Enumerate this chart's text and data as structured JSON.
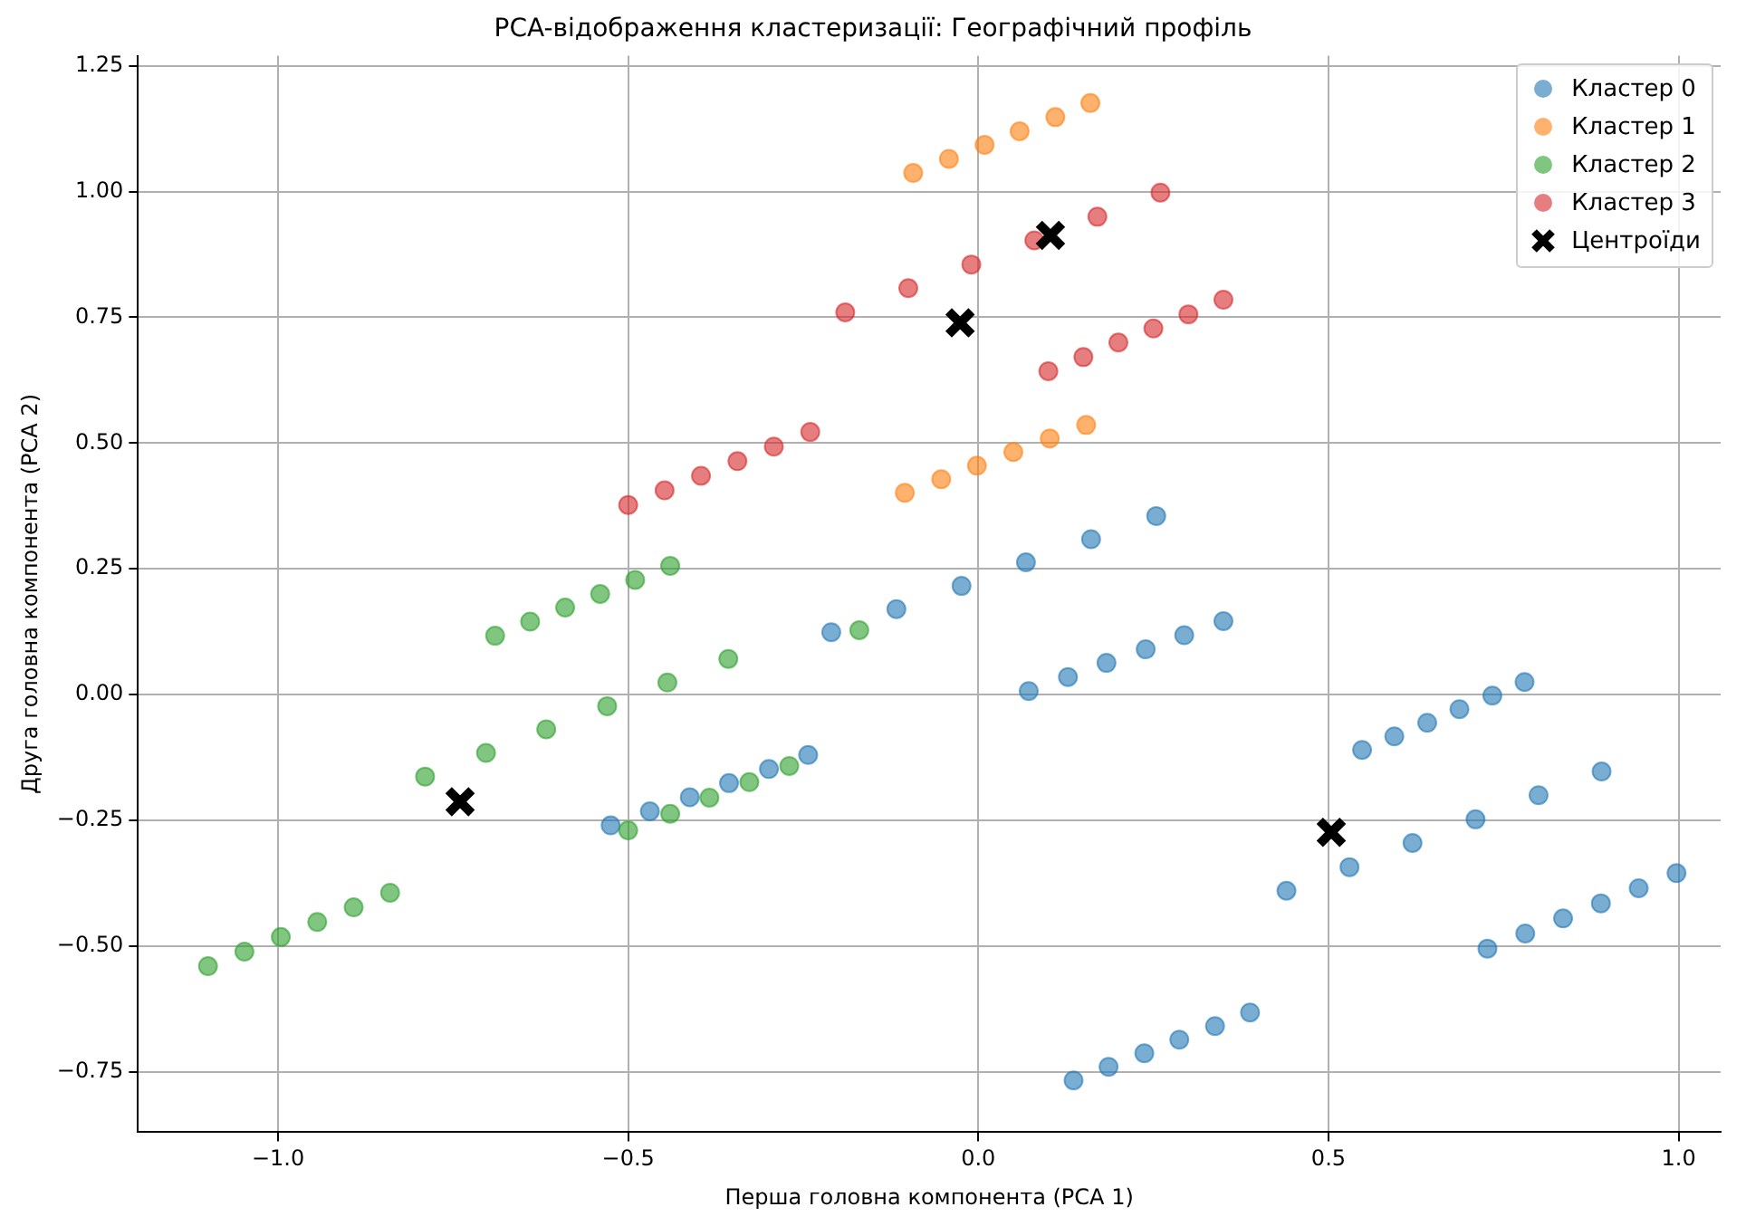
{
  "chart_data": {
    "type": "scatter",
    "title": "PCA-відображення кластеризації: Географічний профіль",
    "xlabel": "Перша головна компонента (PCA 1)",
    "ylabel": "Друга головна компонента (PCA 2)",
    "xlim": [
      -1.2,
      1.06
    ],
    "ylim": [
      -0.87,
      1.27
    ],
    "xticks": [
      {
        "value": -1.0,
        "label": "−1.0"
      },
      {
        "value": -0.5,
        "label": "−0.5"
      },
      {
        "value": 0.0,
        "label": "0.0"
      },
      {
        "value": 0.5,
        "label": "0.5"
      },
      {
        "value": 1.0,
        "label": "1.0"
      }
    ],
    "yticks": [
      {
        "value": -0.75,
        "label": "−0.75"
      },
      {
        "value": -0.5,
        "label": "−0.50"
      },
      {
        "value": -0.25,
        "label": "−0.25"
      },
      {
        "value": 0,
        "label": "0.00"
      },
      {
        "value": 0.25,
        "label": "0.25"
      },
      {
        "value": 0.5,
        "label": "0.50"
      },
      {
        "value": 0.75,
        "label": "0.75"
      },
      {
        "value": 1.0,
        "label": "1.00"
      },
      {
        "value": 1.25,
        "label": "1.25"
      }
    ],
    "grid": true,
    "legend": "top right",
    "series": [
      {
        "name": "Кластер 0",
        "color": "#1f77b4",
        "marker": "circle",
        "x": [
          -0.525,
          -0.469,
          -0.412,
          -0.356,
          -0.299,
          -0.243,
          -0.21,
          -0.117,
          -0.024,
          0.068,
          0.161,
          0.254,
          0.072,
          0.128,
          0.183,
          0.239,
          0.294,
          0.35,
          0.548,
          0.594,
          0.641,
          0.687,
          0.734,
          0.78,
          0.44,
          0.53,
          0.62,
          0.71,
          0.8,
          0.89,
          0.727,
          0.781,
          0.835,
          0.889,
          0.943,
          0.997,
          0.136,
          0.186,
          0.237,
          0.287,
          0.338,
          0.388
        ],
        "values": [
          -0.26,
          -0.232,
          -0.204,
          -0.176,
          -0.148,
          -0.12,
          0.124,
          0.17,
          0.216,
          0.263,
          0.309,
          0.355,
          0.007,
          0.035,
          0.063,
          0.09,
          0.118,
          0.146,
          -0.11,
          -0.083,
          -0.056,
          -0.029,
          -0.002,
          0.025,
          -0.39,
          -0.343,
          -0.295,
          -0.248,
          -0.2,
          -0.153,
          -0.505,
          -0.475,
          -0.445,
          -0.415,
          -0.385,
          -0.355,
          -0.767,
          -0.74,
          -0.713,
          -0.686,
          -0.659,
          -0.632
        ]
      },
      {
        "name": "Кластер 1",
        "color": "#ff7f0e",
        "marker": "circle",
        "x": [
          -0.093,
          -0.042,
          0.009,
          0.059,
          0.11,
          0.16,
          -0.105,
          -0.053,
          -0.002,
          0.05,
          0.102,
          0.154
        ],
        "values": [
          1.037,
          1.065,
          1.093,
          1.12,
          1.148,
          1.176,
          0.401,
          0.428,
          0.455,
          0.482,
          0.509,
          0.536
        ]
      },
      {
        "name": "Кластер 2",
        "color": "#2ca02c",
        "marker": "circle",
        "x": [
          -1.1,
          -1.048,
          -0.996,
          -0.944,
          -0.892,
          -0.84,
          -0.79,
          -0.703,
          -0.617,
          -0.53,
          -0.444,
          -0.357,
          -0.69,
          -0.64,
          -0.59,
          -0.54,
          -0.49,
          -0.44,
          -0.5,
          -0.44,
          -0.384,
          -0.327,
          -0.27,
          -0.17
        ],
        "values": [
          -0.54,
          -0.511,
          -0.482,
          -0.452,
          -0.423,
          -0.394,
          -0.163,
          -0.116,
          -0.069,
          -0.023,
          0.024,
          0.071,
          0.117,
          0.145,
          0.173,
          0.2,
          0.228,
          0.256,
          -0.27,
          -0.237,
          -0.205,
          -0.174,
          -0.142,
          0.128
        ]
      },
      {
        "name": "Кластер 3",
        "color": "#d62728",
        "marker": "circle",
        "x": [
          -0.5,
          -0.448,
          -0.396,
          -0.344,
          -0.292,
          -0.24,
          -0.19,
          -0.1,
          -0.01,
          0.08,
          0.17,
          0.26,
          0.1,
          0.15,
          0.2,
          0.25,
          0.3,
          0.35
        ],
        "values": [
          0.377,
          0.406,
          0.435,
          0.464,
          0.493,
          0.522,
          0.76,
          0.808,
          0.855,
          0.903,
          0.95,
          0.998,
          0.643,
          0.671,
          0.7,
          0.728,
          0.756,
          0.785
        ]
      },
      {
        "name": "Центроїди",
        "color": "#000000",
        "marker": "cross",
        "x": [
          -0.74,
          -0.026,
          0.103,
          0.504
        ],
        "values": [
          -0.213,
          0.739,
          0.913,
          -0.274
        ]
      }
    ]
  }
}
